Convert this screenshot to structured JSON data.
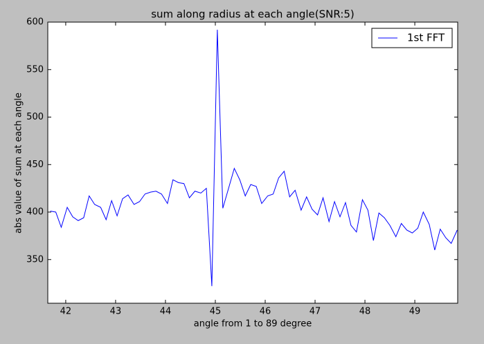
{
  "chart_data": {
    "type": "line",
    "title": "sum along radius at each angle(SNR:5)",
    "x_label": "angle from 1 to 89 degree",
    "y_label": "abs value of sum at each angle",
    "x": [
      41.69,
      41.8,
      41.91,
      42.03,
      42.14,
      42.25,
      42.36,
      42.47,
      42.58,
      42.7,
      42.81,
      42.92,
      43.03,
      43.14,
      43.25,
      43.37,
      43.48,
      43.59,
      43.7,
      43.81,
      43.92,
      44.04,
      44.15,
      44.26,
      44.37,
      44.48,
      44.59,
      44.71,
      44.82,
      44.93,
      45.04,
      45.15,
      45.26,
      45.38,
      45.49,
      45.6,
      45.71,
      45.82,
      45.93,
      46.05,
      46.16,
      46.27,
      46.38,
      46.49,
      46.6,
      46.72,
      46.83,
      46.94,
      47.05,
      47.16,
      47.28,
      47.39,
      47.5,
      47.61,
      47.72,
      47.83,
      47.95,
      48.06,
      48.17,
      48.28,
      48.39,
      48.5,
      48.62,
      48.73,
      48.84,
      48.95,
      49.06,
      49.17,
      49.29,
      49.4,
      49.51,
      49.62,
      49.73,
      49.85
    ],
    "series": [
      {
        "name": "1st FFT",
        "color": "#0000ff",
        "values": [
          401,
          400,
          384,
          405,
          395,
          391,
          394,
          417,
          408,
          405,
          392,
          412,
          396,
          414,
          418,
          408,
          411,
          419,
          421,
          422,
          419,
          409,
          434,
          431,
          430,
          415,
          422,
          420,
          425,
          322,
          592,
          404,
          424,
          446,
          434,
          417,
          429,
          427,
          409,
          417,
          419,
          436,
          443,
          416,
          423,
          402,
          416,
          403,
          397,
          415,
          390,
          411,
          395,
          410,
          386,
          379,
          413,
          402,
          370,
          399,
          394,
          386,
          374,
          388,
          381,
          378,
          383,
          400,
          387,
          360,
          382,
          373,
          367,
          381
        ]
      }
    ],
    "xlim": [
      41.64,
      49.86
    ],
    "xticks": [
      42,
      43,
      44,
      45,
      46,
      47,
      48,
      49
    ],
    "ylim": [
      304,
      600
    ],
    "yticks": [
      350,
      400,
      450,
      500,
      550,
      600
    ],
    "legend_position": "upper right"
  }
}
